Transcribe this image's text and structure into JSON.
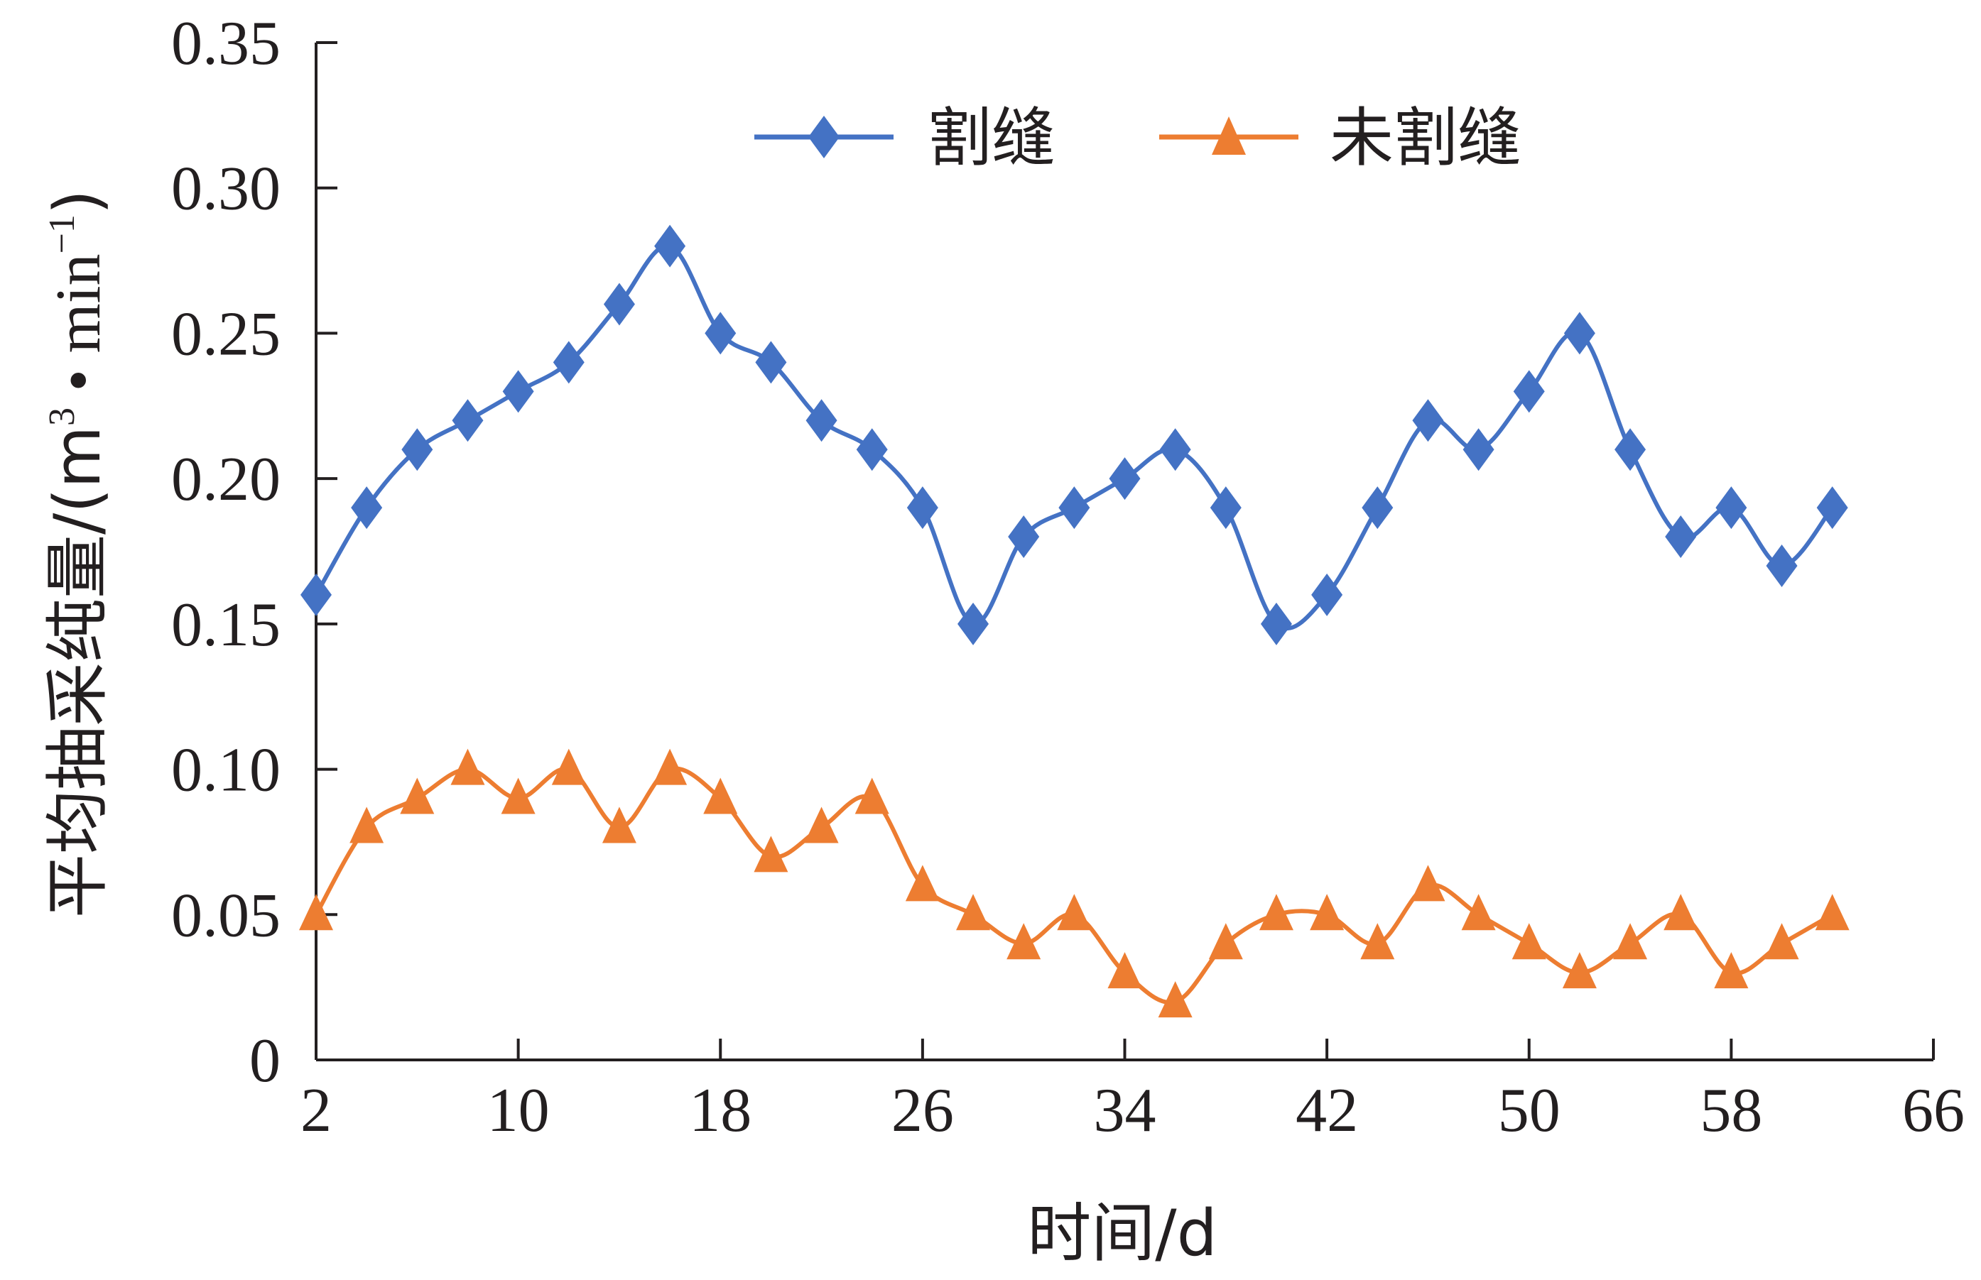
{
  "chart_data": {
    "type": "line",
    "title": "",
    "xlabel": "时间/d",
    "ylabel": "平均抽采纯量/(m3・min-1)",
    "ylabel_parts": {
      "main": "平均抽采纯量/(m",
      "sup1": "3",
      "mid": " • min",
      "sup2": "−1",
      "end": ")"
    },
    "xlim": [
      2,
      66
    ],
    "ylim": [
      0,
      0.35
    ],
    "x_ticks": [
      2,
      10,
      18,
      26,
      34,
      42,
      50,
      58,
      66
    ],
    "x_tick_labels": [
      "2",
      "10",
      "18",
      "26",
      "34",
      "42",
      "50",
      "58",
      "66"
    ],
    "y_ticks": [
      0,
      0.05,
      0.1,
      0.15,
      0.2,
      0.25,
      0.3,
      0.35
    ],
    "y_tick_labels": [
      "0",
      "0.05",
      "0.10",
      "0.15",
      "0.20",
      "0.25",
      "0.30",
      "0.35"
    ],
    "grid": false,
    "legend_position": "top-center",
    "x": [
      2,
      4,
      6,
      8,
      10,
      12,
      14,
      16,
      18,
      20,
      22,
      24,
      26,
      28,
      30,
      32,
      34,
      36,
      38,
      40,
      42,
      44,
      46,
      48,
      50,
      52,
      54,
      56,
      58,
      60,
      62
    ],
    "series": [
      {
        "name": "割缝",
        "color": "#4472c4",
        "marker": "diamond",
        "values": [
          0.16,
          0.19,
          0.21,
          0.22,
          0.23,
          0.24,
          0.26,
          0.28,
          0.25,
          0.24,
          0.22,
          0.21,
          0.19,
          0.15,
          0.18,
          0.19,
          0.2,
          0.21,
          0.19,
          0.15,
          0.16,
          0.19,
          0.22,
          0.21,
          0.23,
          0.25,
          0.21,
          0.18,
          0.19,
          0.17,
          0.19
        ]
      },
      {
        "name": "未割缝",
        "color": "#ed7d31",
        "marker": "triangle",
        "values": [
          0.05,
          0.08,
          0.09,
          0.1,
          0.09,
          0.1,
          0.08,
          0.1,
          0.09,
          0.07,
          0.08,
          0.09,
          0.06,
          0.05,
          0.04,
          0.05,
          0.03,
          0.02,
          0.04,
          0.05,
          0.05,
          0.04,
          0.06,
          0.05,
          0.04,
          0.03,
          0.04,
          0.05,
          0.03,
          0.04,
          0.05
        ]
      }
    ]
  }
}
